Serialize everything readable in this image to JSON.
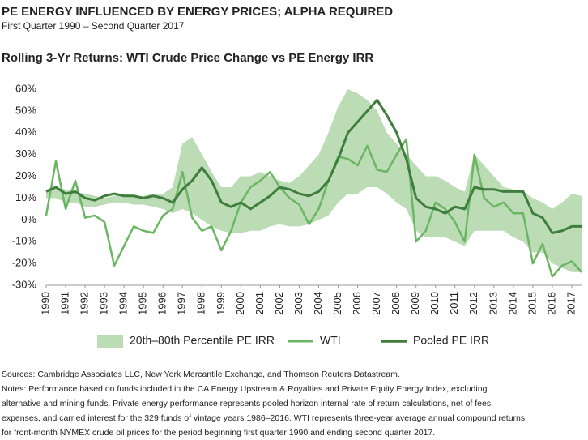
{
  "title": "PE ENERGY INFLUENCED BY ENERGY PRICES; ALPHA REQUIRED",
  "subtitle": "First Quarter 1990 – Second Quarter 2017",
  "chart_data": {
    "type": "line",
    "title": "Rolling 3-Yr Returns: WTI Crude Price Change vs PE Energy IRR",
    "x": [
      1990,
      1990.5,
      1991,
      1991.5,
      1992,
      1992.5,
      1993,
      1993.5,
      1994,
      1994.5,
      1995,
      1995.5,
      1996,
      1996.5,
      1997,
      1997.5,
      1998,
      1998.5,
      1999,
      1999.5,
      2000,
      2000.5,
      2001,
      2001.5,
      2002,
      2002.5,
      2003,
      2003.5,
      2004,
      2004.5,
      2005,
      2005.5,
      2006,
      2006.5,
      2007,
      2007.5,
      2008,
      2008.5,
      2009,
      2009.5,
      2010,
      2010.5,
      2011,
      2011.5,
      2012,
      2012.5,
      2013,
      2013.5,
      2014,
      2014.5,
      2015,
      2015.5,
      2016,
      2016.5,
      2017,
      2017.5
    ],
    "series": [
      {
        "name": "20th–80th Percentile PE IRR",
        "kind": "band",
        "color": "#bcdcb6",
        "values": [
          14,
          15,
          14,
          13,
          12,
          11,
          10,
          11,
          12,
          11,
          11,
          12,
          12,
          15,
          35,
          38,
          30,
          22,
          15,
          15,
          20,
          20,
          22,
          20,
          18,
          17,
          20,
          25,
          30,
          40,
          52,
          60,
          58,
          55,
          50,
          40,
          35,
          30,
          25,
          20,
          20,
          18,
          15,
          13,
          30,
          25,
          20,
          15,
          14,
          13,
          10,
          8,
          5,
          8,
          12,
          11
        ],
        "lower": [
          10,
          10,
          8,
          8,
          6,
          6,
          7,
          8,
          8,
          7,
          7,
          6,
          5,
          3,
          5,
          3,
          0,
          -3,
          -5,
          -6,
          -6,
          -5,
          -5,
          -3,
          -2,
          -3,
          -3,
          -2,
          0,
          2,
          8,
          12,
          12,
          15,
          15,
          12,
          8,
          5,
          -5,
          -8,
          -8,
          -8,
          -10,
          -12,
          -5,
          -5,
          -5,
          -5,
          -8,
          -10,
          -15,
          -15,
          -20,
          -22,
          -24,
          -24
        ]
      },
      {
        "name": "WTI",
        "color": "#6bb663",
        "values": [
          2,
          27,
          5,
          18,
          1,
          2,
          -1,
          -21,
          -12,
          -3,
          -5,
          -6,
          2,
          5,
          22,
          1,
          -5,
          -3,
          -14,
          -5,
          8,
          15,
          18,
          22,
          15,
          10,
          7,
          -2,
          5,
          18,
          29,
          28,
          25,
          34,
          23,
          22,
          30,
          37,
          -10,
          -5,
          8,
          5,
          -1,
          -10,
          30,
          10,
          6,
          8,
          3,
          3,
          -20,
          -11,
          -26,
          -21,
          -19,
          -24
        ]
      },
      {
        "name": "Pooled PE IRR",
        "color": "#3f7d3d",
        "values": [
          13,
          15,
          12,
          13,
          10,
          9,
          11,
          12,
          11,
          11,
          10,
          11,
          10,
          8,
          14,
          18,
          24,
          18,
          8,
          6,
          8,
          5,
          8,
          11,
          15,
          14,
          12,
          11,
          13,
          18,
          28,
          40,
          45,
          50,
          55,
          48,
          40,
          28,
          10,
          6,
          5,
          3,
          6,
          5,
          15,
          14,
          14,
          13,
          13,
          13,
          3,
          1,
          -6,
          -5,
          -3,
          -3
        ]
      }
    ],
    "xlim": [
      1990,
      2017.5
    ],
    "xticks": [
      1990,
      1991,
      1992,
      1993,
      1994,
      1995,
      1996,
      1997,
      1998,
      1999,
      2000,
      2001,
      2002,
      2003,
      2004,
      2005,
      2006,
      2007,
      2008,
      2009,
      2010,
      2011,
      2012,
      2013,
      2014,
      2015,
      2016,
      2017
    ],
    "ylim": [
      -30,
      60
    ],
    "yticks": [
      {
        "value": -30,
        "label": "-30%"
      },
      {
        "value": -20,
        "label": "-20%"
      },
      {
        "value": -10,
        "label": "-10%"
      },
      {
        "value": 0,
        "label": "0%"
      },
      {
        "value": 10,
        "label": "10%"
      },
      {
        "value": 20,
        "label": "20%"
      },
      {
        "value": 30,
        "label": "30%"
      },
      {
        "value": 40,
        "label": "40%"
      },
      {
        "value": 50,
        "label": "50%"
      },
      {
        "value": 60,
        "label": "60%"
      }
    ],
    "grid": false,
    "legend": "bottom"
  },
  "sources": "Sources: Cambridge Associates LLC, New York Mercantile Exchange, and Thomson Reuters Datastream.",
  "notes": [
    "Notes: Performance based on funds included in the CA Energy Upstream & Royalties and Private Equity Energy Index, excluding",
    "alternative and mining funds. Private energy performance represents pooled horizon internal rate of return calculations, net of fees,",
    "expenses, and carried interest for the 329 funds of vintage years 1986–2016. WTI represents three-year average annual compound returns",
    "for front-month NYMEX crude oil prices for the period beginning first quarter 1990 and ending second quarter 2017."
  ]
}
